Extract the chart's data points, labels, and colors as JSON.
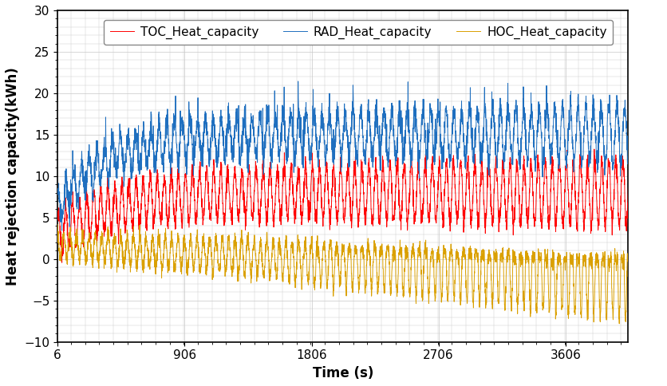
{
  "title": "",
  "xlabel": "Time (s)",
  "ylabel": "Heat rejection capacity(kWh)",
  "xlim": [
    6,
    4050
  ],
  "ylim": [
    -10,
    30
  ],
  "xticks": [
    6,
    906,
    1806,
    2706,
    3606
  ],
  "yticks": [
    -10,
    -5,
    0,
    5,
    10,
    15,
    20,
    25,
    30
  ],
  "legend_labels": [
    "TOC_Heat_capacity",
    "RAD_Heat_capacity",
    "HOC_Heat_capacity"
  ],
  "colors": [
    "#FF0000",
    "#1F6FBF",
    "#DAA000"
  ],
  "line_width": 0.7,
  "n_points": 3600,
  "x_start": 6,
  "x_end": 4050,
  "background_color": "#FFFFFF",
  "grid_color": "#C8C8C8",
  "legend_fontsize": 11,
  "axis_fontsize": 12,
  "tick_fontsize": 11,
  "toc_base": 7.0,
  "toc_amp": 3.5,
  "rad_base": 15.0,
  "rad_amp": 3.0,
  "hoc_base": 0.5,
  "hoc_amp": 2.5
}
